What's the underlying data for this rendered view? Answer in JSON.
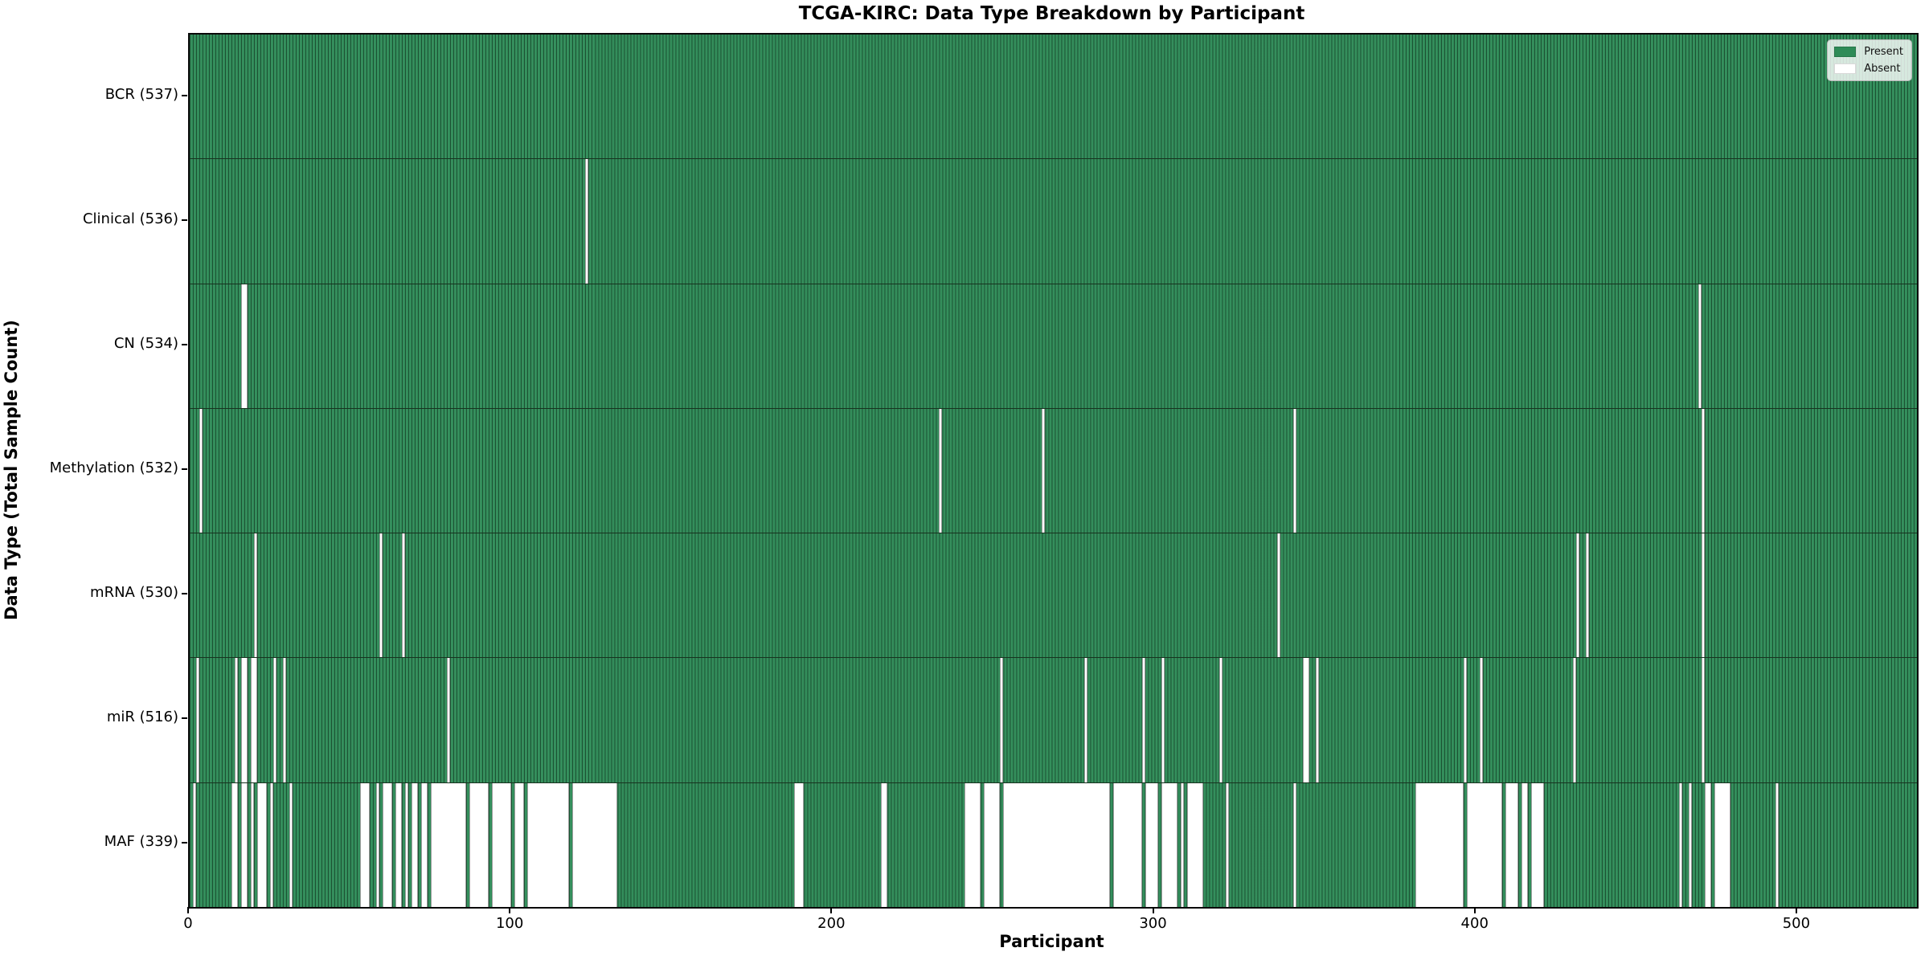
{
  "title": "TCGA-KIRC: Data Type Breakdown by Participant",
  "axes": {
    "xlabel": "Participant",
    "ylabel": "Data Type (Total Sample Count)",
    "x_ticks": [
      "0",
      "100",
      "200",
      "300",
      "400",
      "500"
    ],
    "x_tick_values": [
      0,
      100,
      200,
      300,
      400,
      500
    ],
    "x_max": 537
  },
  "legend": {
    "present_label": "Present",
    "absent_label": "Absent"
  },
  "colors": {
    "present": "#2e8b57",
    "absent": "#ffffff",
    "cell_edge": "rgba(0,0,0,0.42)",
    "plot_border": "#0a0a0a"
  },
  "chart_data": {
    "type": "heatmap",
    "title": "TCGA-KIRC: Data Type Breakdown by Participant",
    "xlabel": "Participant",
    "ylabel": "Data Type (Total Sample Count)",
    "x_range": [
      0,
      537
    ],
    "x_ticks": [
      0,
      100,
      200,
      300,
      400,
      500
    ],
    "legend_entries": [
      "Present",
      "Absent"
    ],
    "legend_position": "upper right",
    "grid": false,
    "value_encoding": "green = data type present for participant, white = absent; 537 participants on x-axis",
    "rows": [
      {
        "label": "BCR (537)",
        "data_type": "BCR",
        "present_count": 537,
        "absent_count": 0,
        "absent_ranges": []
      },
      {
        "label": "Clinical (536)",
        "data_type": "Clinical",
        "present_count": 536,
        "absent_count": 1,
        "absent_ranges": [
          [
            123,
            123
          ]
        ]
      },
      {
        "label": "CN (534)",
        "data_type": "CN",
        "present_count": 534,
        "absent_count": 3,
        "absent_ranges": [
          [
            16,
            17
          ],
          [
            469,
            469
          ]
        ]
      },
      {
        "label": "Methylation (532)",
        "data_type": "Methylation",
        "present_count": 532,
        "absent_count": 5,
        "absent_ranges": [
          [
            3,
            3
          ],
          [
            233,
            233
          ],
          [
            265,
            265
          ],
          [
            343,
            343
          ],
          [
            470,
            470
          ]
        ]
      },
      {
        "label": "mRNA (530)",
        "data_type": "mRNA",
        "present_count": 530,
        "absent_count": 7,
        "absent_ranges": [
          [
            20,
            20
          ],
          [
            59,
            59
          ],
          [
            66,
            66
          ],
          [
            338,
            338
          ],
          [
            431,
            431
          ],
          [
            434,
            434
          ],
          [
            470,
            470
          ]
        ]
      },
      {
        "label": "miR (516)",
        "data_type": "miR",
        "present_count": 516,
        "absent_count": 21,
        "absent_ranges": [
          [
            2,
            2
          ],
          [
            14,
            14
          ],
          [
            16,
            17
          ],
          [
            19,
            20
          ],
          [
            26,
            26
          ],
          [
            29,
            29
          ],
          [
            80,
            80
          ],
          [
            252,
            252
          ],
          [
            278,
            278
          ],
          [
            296,
            296
          ],
          [
            302,
            302
          ],
          [
            320,
            320
          ],
          [
            346,
            347
          ],
          [
            350,
            350
          ],
          [
            396,
            396
          ],
          [
            401,
            401
          ],
          [
            430,
            430
          ],
          [
            470,
            470
          ]
        ]
      },
      {
        "label": "MAF (339)",
        "data_type": "MAF",
        "present_count": 339,
        "absent_count": 198,
        "absent_ranges": [
          [
            1,
            1
          ],
          [
            13,
            14
          ],
          [
            16,
            17
          ],
          [
            19,
            19
          ],
          [
            21,
            23
          ],
          [
            25,
            25
          ],
          [
            31,
            31
          ],
          [
            53,
            55
          ],
          [
            58,
            58
          ],
          [
            60,
            62
          ],
          [
            64,
            65
          ],
          [
            67,
            67
          ],
          [
            69,
            70
          ],
          [
            72,
            73
          ],
          [
            75,
            85
          ],
          [
            87,
            92
          ],
          [
            94,
            99
          ],
          [
            101,
            103
          ],
          [
            105,
            117
          ],
          [
            119,
            132
          ],
          [
            188,
            190
          ],
          [
            215,
            216
          ],
          [
            241,
            245
          ],
          [
            247,
            251
          ],
          [
            253,
            285
          ],
          [
            287,
            295
          ],
          [
            297,
            300
          ],
          [
            302,
            306
          ],
          [
            308,
            308
          ],
          [
            310,
            314
          ],
          [
            322,
            322
          ],
          [
            343,
            343
          ],
          [
            381,
            395
          ],
          [
            397,
            407
          ],
          [
            409,
            412
          ],
          [
            414,
            415
          ],
          [
            417,
            420
          ],
          [
            463,
            463
          ],
          [
            466,
            466
          ],
          [
            471,
            472
          ],
          [
            474,
            478
          ],
          [
            493,
            493
          ]
        ]
      }
    ]
  }
}
